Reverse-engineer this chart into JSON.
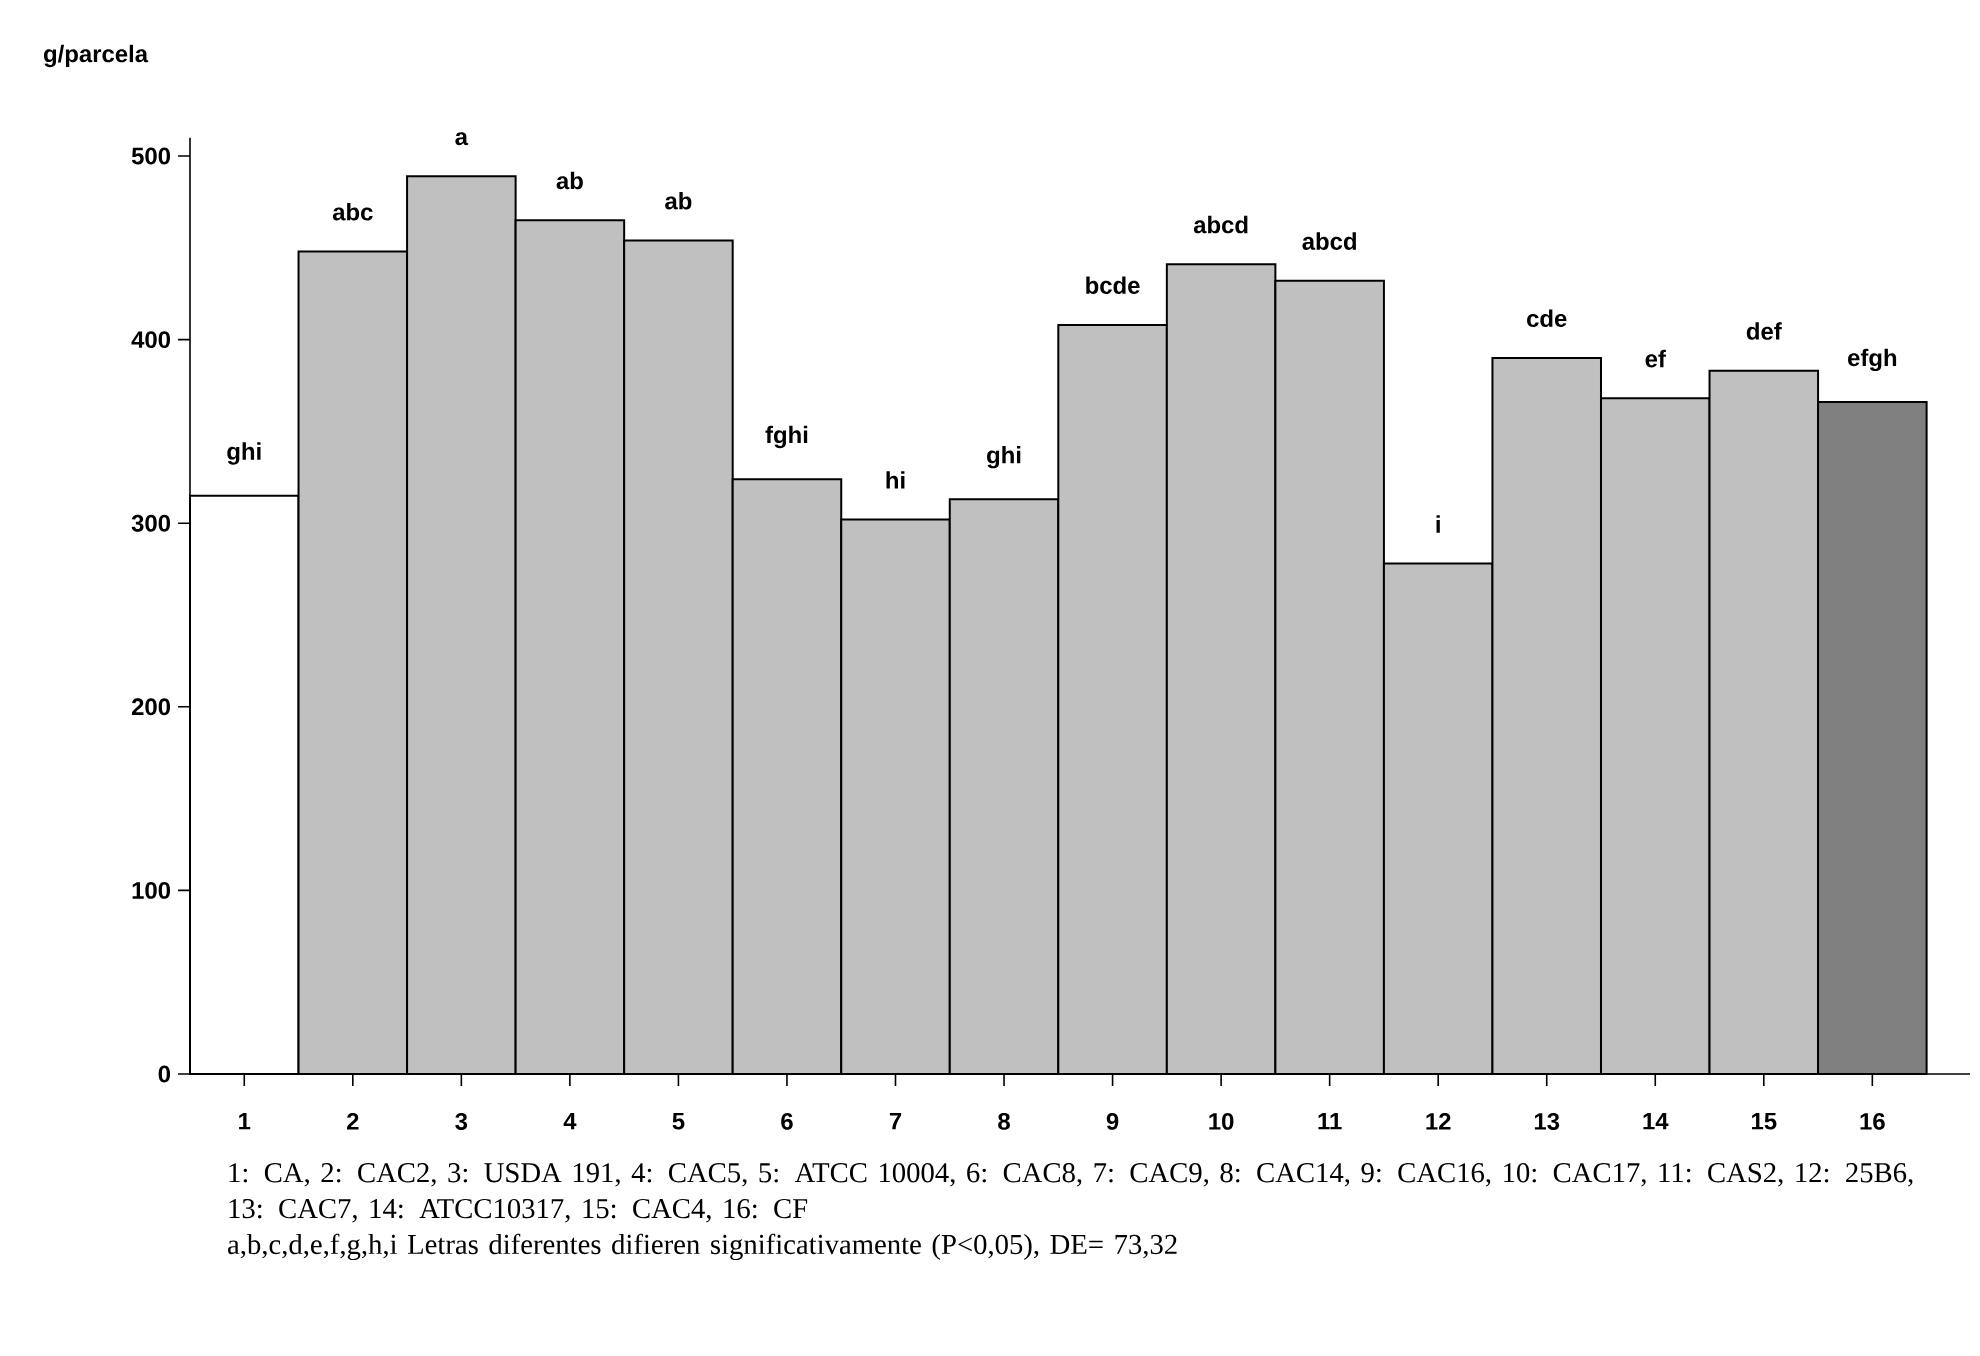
{
  "chart_data": {
    "type": "bar",
    "ylabel": "g/parcela",
    "categories": [
      "1",
      "2",
      "3",
      "4",
      "5",
      "6",
      "7",
      "8",
      "9",
      "10",
      "11",
      "12",
      "13",
      "14",
      "15",
      "16"
    ],
    "values": [
      315,
      448,
      489,
      465,
      454,
      324,
      302,
      313,
      408,
      441,
      432,
      278,
      390,
      368,
      383,
      366
    ],
    "colors": [
      "#ffffff",
      "#c0c0c0",
      "#c0c0c0",
      "#c0c0c0",
      "#c0c0c0",
      "#c0c0c0",
      "#c0c0c0",
      "#c0c0c0",
      "#c0c0c0",
      "#c0c0c0",
      "#c0c0c0",
      "#c0c0c0",
      "#c0c0c0",
      "#c0c0c0",
      "#c0c0c0",
      "#808080"
    ],
    "ylim": [
      0,
      510
    ],
    "yticks": [
      0,
      100,
      200,
      300,
      400,
      500
    ],
    "grid": false,
    "annotations": [
      {
        "text": "ghi",
        "x": "1",
        "y": 315
      },
      {
        "text": "abc",
        "x": "2",
        "y": 448
      },
      {
        "text": "a",
        "x": "3",
        "y": 489
      },
      {
        "text": "ab",
        "x": "4",
        "y": 465
      },
      {
        "text": "ab",
        "x": "5",
        "y": 454
      },
      {
        "text": "fghi",
        "x": "6",
        "y": 324
      },
      {
        "text": "hi",
        "x": "7",
        "y": 302
      },
      {
        "text": "ghi",
        "x": "8",
        "y": 313
      },
      {
        "text": "bcde",
        "x": "9",
        "y": 408
      },
      {
        "text": "abcd",
        "x": "10",
        "y": 441
      },
      {
        "text": "abcd",
        "x": "11",
        "y": 432
      },
      {
        "text": "i",
        "x": "12",
        "y": 278
      },
      {
        "text": "cde",
        "x": "13",
        "y": 390
      },
      {
        "text": "ef",
        "x": "14",
        "y": 368
      },
      {
        "text": "def",
        "x": "15",
        "y": 383
      },
      {
        "text": "efgh",
        "x": "16",
        "y": 366
      },
      "1: CA, 2: CAC2, 3: USDA 191, 4: CAC5, 5: ATCC 10004, 6: CAC8, 7: CAC9, 8: CAC14, 9: CAC16, 10: CAC17, 11: CAS2, 12: 25B6, 13: CAC7, 14: ATCC10317, 15: CAC4, 16: CF",
      "a,b,c,d,e,f,g,h,i Letras diferentes difieren significativamente (P<0,05), DE= 73,32"
    ]
  }
}
